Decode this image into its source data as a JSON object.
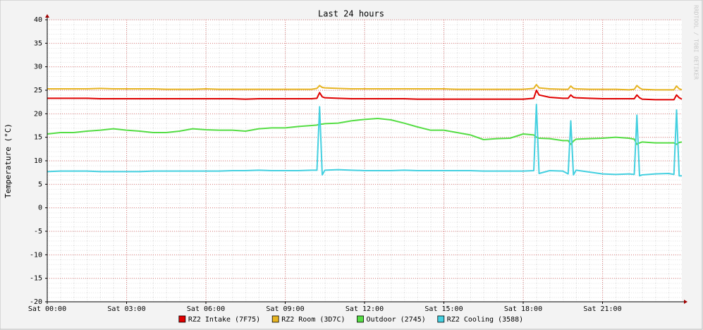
{
  "chart_data": {
    "type": "line",
    "title": "Last 24 hours",
    "y_label": "Temperature (°C)",
    "watermark": "RRDTOOL / TOBI OETIKER",
    "x": [
      0,
      0.5,
      1,
      1.5,
      2,
      2.5,
      3,
      3.5,
      4,
      4.5,
      5,
      5.5,
      6,
      6.5,
      7,
      7.5,
      8,
      8.5,
      9,
      9.5,
      10,
      10.2,
      10.3,
      10.4,
      10.5,
      11,
      11.5,
      12,
      12.5,
      13,
      13.5,
      14,
      14.5,
      15,
      15.5,
      16,
      16.5,
      17,
      17.5,
      18,
      18.4,
      18.5,
      18.6,
      19,
      19.5,
      19.7,
      19.8,
      19.9,
      20,
      20.5,
      21,
      21.5,
      22,
      22.2,
      22.3,
      22.4,
      22.5,
      23,
      23.5,
      23.7,
      23.8,
      23.9,
      24
    ],
    "xlim": [
      0,
      24
    ],
    "xticks": [
      {
        "value": 0,
        "label": "Sat 00:00"
      },
      {
        "value": 3,
        "label": "Sat 03:00"
      },
      {
        "value": 6,
        "label": "Sat 06:00"
      },
      {
        "value": 9,
        "label": "Sat 09:00"
      },
      {
        "value": 12,
        "label": "Sat 12:00"
      },
      {
        "value": 15,
        "label": "Sat 15:00"
      },
      {
        "value": 18,
        "label": "Sat 18:00"
      },
      {
        "value": 21,
        "label": "Sat 21:00"
      }
    ],
    "ylim": [
      -20,
      40
    ],
    "yticks": [
      -20,
      -15,
      -10,
      -5,
      0,
      5,
      10,
      15,
      20,
      25,
      30,
      35,
      40
    ],
    "grid": true,
    "series": [
      {
        "name": "RZ2 Intake (7F75)",
        "color": "#e00000",
        "values": [
          23.3,
          23.3,
          23.3,
          23.3,
          23.2,
          23.2,
          23.2,
          23.2,
          23.2,
          23.2,
          23.2,
          23.2,
          23.2,
          23.2,
          23.2,
          23.1,
          23.2,
          23.2,
          23.2,
          23.2,
          23.2,
          23.3,
          24.5,
          23.6,
          23.4,
          23.3,
          23.2,
          23.2,
          23.2,
          23.2,
          23.2,
          23.1,
          23.1,
          23.1,
          23.1,
          23.1,
          23.1,
          23.1,
          23.1,
          23.1,
          23.3,
          25,
          24,
          23.5,
          23.3,
          23.3,
          24,
          23.5,
          23.4,
          23.3,
          23.2,
          23.2,
          23.2,
          23.2,
          24,
          23.4,
          23.1,
          23,
          23,
          23,
          24,
          23.4,
          23.1
        ]
      },
      {
        "name": "RZ2 Room (3D7C)",
        "color": "#e6b422",
        "values": [
          25.3,
          25.3,
          25.3,
          25.3,
          25.4,
          25.3,
          25.3,
          25.3,
          25.3,
          25.2,
          25.2,
          25.2,
          25.3,
          25.2,
          25.2,
          25.2,
          25.2,
          25.2,
          25.2,
          25.2,
          25.2,
          25.4,
          26,
          25.6,
          25.5,
          25.4,
          25.3,
          25.3,
          25.3,
          25.3,
          25.3,
          25.3,
          25.3,
          25.3,
          25.2,
          25.2,
          25.2,
          25.2,
          25.2,
          25.2,
          25.4,
          26.2,
          25.5,
          25.3,
          25.2,
          25.2,
          25.9,
          25.4,
          25.3,
          25.2,
          25.2,
          25.2,
          25.1,
          25.2,
          26,
          25.5,
          25.2,
          25.1,
          25.1,
          25.1,
          25.9,
          25.3,
          25.1
        ]
      },
      {
        "name": "Outdoor (2745)",
        "color": "#55dd44",
        "values": [
          15.7,
          16,
          16,
          16.3,
          16.5,
          16.8,
          16.5,
          16.3,
          16,
          16,
          16.3,
          16.8,
          16.6,
          16.5,
          16.5,
          16.3,
          16.8,
          17,
          17,
          17.3,
          17.5,
          17.6,
          17.8,
          17.8,
          17.9,
          18,
          18.5,
          18.8,
          19,
          18.7,
          18,
          17.2,
          16.5,
          16.5,
          16,
          15.5,
          14.5,
          14.7,
          14.8,
          15.7,
          15.5,
          15,
          14.8,
          14.7,
          14.3,
          14.3,
          13.5,
          14.2,
          14.6,
          14.7,
          14.8,
          15,
          14.8,
          14.6,
          13.5,
          13.8,
          14,
          13.8,
          13.8,
          13.8,
          13.5,
          13.9,
          14
        ]
      },
      {
        "name": "RZ2 Cooling (3588)",
        "color": "#44d0e0",
        "values": [
          7.7,
          7.8,
          7.8,
          7.8,
          7.7,
          7.7,
          7.7,
          7.7,
          7.8,
          7.8,
          7.8,
          7.8,
          7.8,
          7.8,
          7.9,
          7.9,
          8,
          7.9,
          7.9,
          7.9,
          8,
          8,
          21.5,
          7,
          8,
          8.1,
          8,
          7.9,
          7.9,
          7.9,
          8,
          7.9,
          7.9,
          7.9,
          7.9,
          7.9,
          7.8,
          7.8,
          7.8,
          7.8,
          7.9,
          22,
          7.3,
          7.9,
          7.8,
          7.2,
          18.5,
          7,
          8,
          7.6,
          7.2,
          7.1,
          7.2,
          7.1,
          19.7,
          6.8,
          7,
          7.2,
          7.3,
          7.1,
          20.8,
          6.8,
          6.8
        ]
      }
    ]
  }
}
